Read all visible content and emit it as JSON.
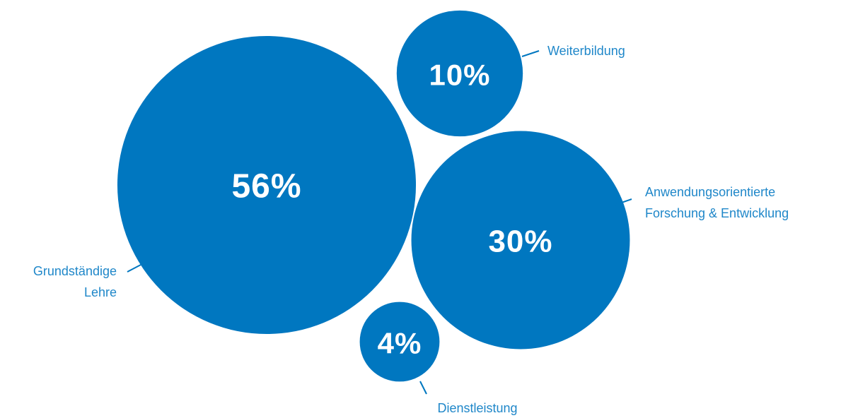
{
  "chart_data": {
    "type": "bubble",
    "categories": [
      "Grundständige Lehre",
      "Weiterbildung",
      "Anwendungsorientierte Forschung & Entwicklung",
      "Dienstleistung"
    ],
    "values": [
      56,
      10,
      30,
      4
    ],
    "value_labels": [
      "56%",
      "10%",
      "30%",
      "4%"
    ],
    "color": "#0077c0"
  }
}
